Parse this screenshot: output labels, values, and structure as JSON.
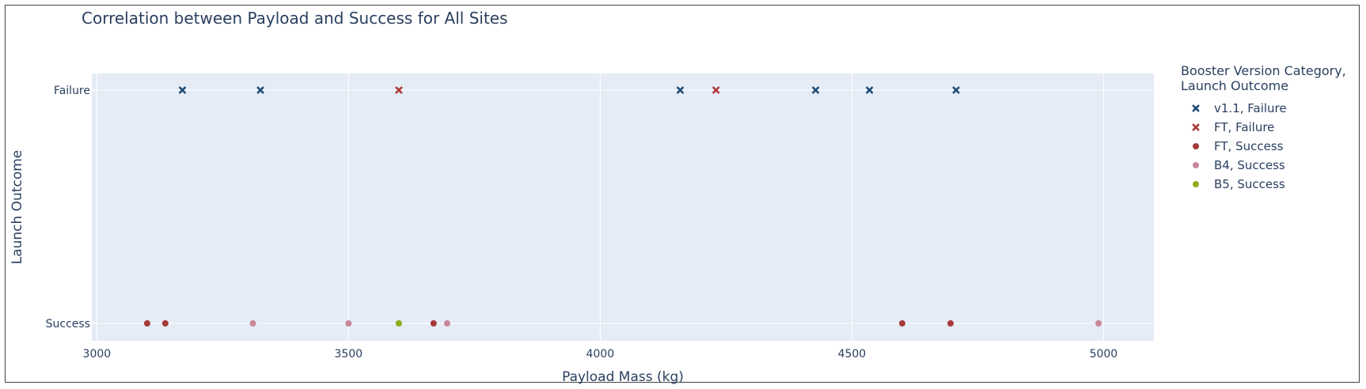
{
  "chart_data": {
    "type": "scatter",
    "title": "Correlation between Payload and Success for All Sites",
    "xlabel": "Payload Mass (kg)",
    "ylabel": "Launch Outcome",
    "xlim": [
      2990,
      5100
    ],
    "x_ticks": [
      3000,
      3500,
      4000,
      4500,
      5000
    ],
    "y_categories": [
      "Success",
      "Failure"
    ],
    "grid": true,
    "legend_title": "Booster Version Category, Launch Outcome",
    "legend_position": "right",
    "series": [
      {
        "name": "v1.1, Failure",
        "symbol": "x",
        "color": "#1f4e79",
        "points": [
          {
            "x": 3170,
            "y": "Failure"
          },
          {
            "x": 3325,
            "y": "Failure"
          },
          {
            "x": 4159,
            "y": "Failure"
          },
          {
            "x": 4428,
            "y": "Failure"
          },
          {
            "x": 4535,
            "y": "Failure"
          },
          {
            "x": 4707,
            "y": "Failure"
          }
        ]
      },
      {
        "name": "FT, Failure",
        "symbol": "x",
        "color": "#b03a3a",
        "points": [
          {
            "x": 3600,
            "y": "Failure"
          },
          {
            "x": 4230,
            "y": "Failure"
          }
        ]
      },
      {
        "name": "FT, Success",
        "symbol": "circle",
        "color": "#a63a3a",
        "points": [
          {
            "x": 3100,
            "y": "Success"
          },
          {
            "x": 3136,
            "y": "Success"
          },
          {
            "x": 3669,
            "y": "Success"
          },
          {
            "x": 4600,
            "y": "Success"
          },
          {
            "x": 4696,
            "y": "Success"
          }
        ]
      },
      {
        "name": "B4, Success",
        "symbol": "circle",
        "color": "#c9889a",
        "points": [
          {
            "x": 3310,
            "y": "Success"
          },
          {
            "x": 3500,
            "y": "Success"
          },
          {
            "x": 3696,
            "y": "Success"
          },
          {
            "x": 4990,
            "y": "Success"
          }
        ]
      },
      {
        "name": "B5, Success",
        "symbol": "circle",
        "color": "#8fae1b",
        "points": [
          {
            "x": 3600,
            "y": "Success"
          }
        ]
      }
    ]
  }
}
